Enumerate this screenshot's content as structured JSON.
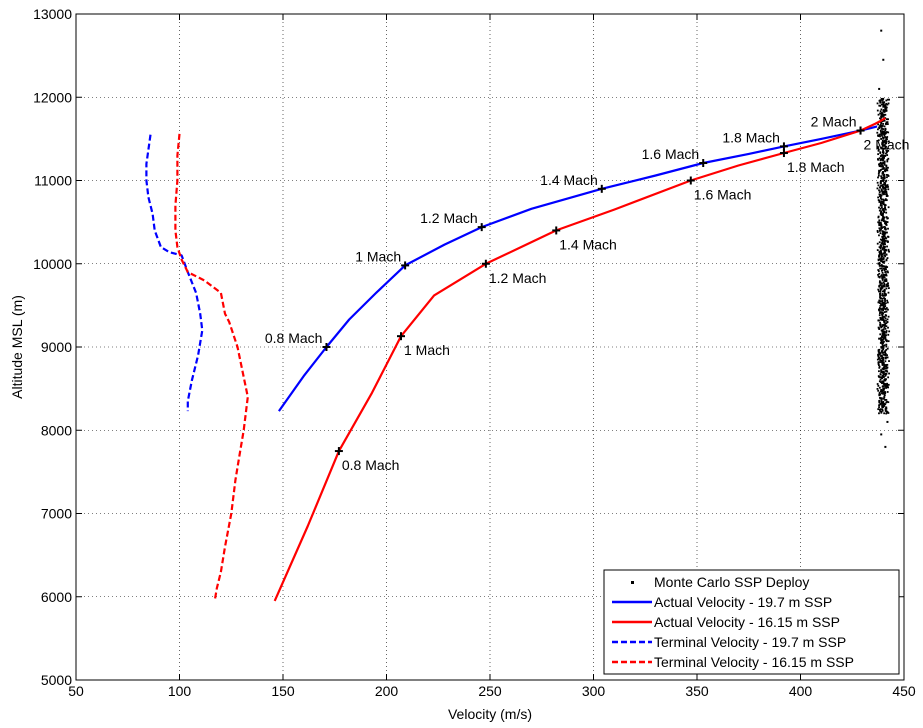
{
  "chart_data": {
    "type": "line",
    "title": "",
    "xlabel": "Velocity (m/s)",
    "ylabel": "Altitude MSL (m)",
    "xlim": [
      50,
      450
    ],
    "ylim": [
      5000,
      13000
    ],
    "xticks": [
      50,
      100,
      150,
      200,
      250,
      300,
      350,
      400,
      450
    ],
    "yticks": [
      5000,
      6000,
      7000,
      8000,
      9000,
      10000,
      11000,
      12000,
      13000
    ],
    "grid": true,
    "legend_position": "bottom-right",
    "series": [
      {
        "name": "Monte Carlo SSP Deploy",
        "style": "scatter",
        "color": "#000000",
        "points": [
          [
            439,
            12800
          ],
          [
            440,
            12450
          ],
          [
            438,
            12100
          ],
          [
            441,
            11900
          ],
          [
            442,
            11700
          ],
          [
            439,
            11500
          ],
          [
            440,
            11300
          ],
          [
            438,
            11100
          ],
          [
            441,
            10900
          ],
          [
            439,
            10700
          ],
          [
            442,
            10500
          ],
          [
            440,
            10300
          ],
          [
            438,
            10100
          ],
          [
            441,
            9900
          ],
          [
            439,
            9700
          ],
          [
            440,
            9500
          ],
          [
            442,
            9300
          ],
          [
            438,
            9100
          ],
          [
            441,
            8900
          ],
          [
            439,
            8700
          ],
          [
            440,
            8500
          ],
          [
            438,
            8300
          ],
          [
            442,
            8100
          ],
          [
            439,
            7950
          ],
          [
            441,
            7800
          ]
        ],
        "density_band": {
          "x_range": [
            437,
            443
          ],
          "y_range": [
            8200,
            12000
          ]
        }
      },
      {
        "name": "Actual Velocity - 19.7 m SSP",
        "style": "solid",
        "color": "#0000ff",
        "x": [
          148,
          160,
          171,
          182,
          195,
          209,
          228,
          246,
          270,
          304,
          330,
          353,
          375,
          392,
          410,
          429,
          434,
          437
        ],
        "y": [
          8230,
          8650,
          9000,
          9330,
          9650,
          9980,
          10230,
          10440,
          10660,
          10900,
          11060,
          11210,
          11320,
          11410,
          11500,
          11600,
          11630,
          11650
        ]
      },
      {
        "name": "Actual Velocity - 16.15 m SSP",
        "style": "solid",
        "color": "#ff0000",
        "x": [
          146,
          162,
          177,
          193,
          207,
          223,
          248,
          265,
          282,
          310,
          347,
          370,
          392,
          410,
          429,
          436,
          439,
          441
        ],
        "y": [
          5950,
          6850,
          7750,
          8450,
          9130,
          9620,
          10000,
          10200,
          10400,
          10650,
          11000,
          11180,
          11330,
          11450,
          11600,
          11680,
          11720,
          11750
        ]
      },
      {
        "name": "Terminal Velocity - 19.7 m SSP",
        "style": "dashed",
        "color": "#0000ff",
        "x": [
          86,
          84,
          84,
          85,
          87,
          88,
          91,
          95,
          101,
          104,
          108,
          110,
          111,
          109,
          106,
          104,
          104
        ],
        "y": [
          11550,
          11200,
          11000,
          10800,
          10600,
          10400,
          10200,
          10140,
          10100,
          9900,
          9650,
          9400,
          9200,
          8900,
          8600,
          8350,
          8230
        ]
      },
      {
        "name": "Terminal Velocity - 16.15 m SSP",
        "style": "dashed",
        "color": "#ff0000",
        "x": [
          100,
          99,
          99,
          98,
          98,
          99,
          101,
          104,
          112,
          120,
          122,
          124,
          128,
          133,
          131,
          129,
          127,
          125,
          122,
          120,
          118,
          117
        ],
        "y": [
          11560,
          11300,
          11000,
          10700,
          10400,
          10200,
          10050,
          9900,
          9800,
          9650,
          9400,
          9300,
          9000,
          8400,
          8000,
          7700,
          7400,
          7000,
          6600,
          6300,
          6100,
          5950
        ]
      }
    ],
    "annotations": [
      {
        "text": "0.8 Mach",
        "x": 171,
        "y": 9000,
        "series": "blue",
        "side": "left"
      },
      {
        "text": "1 Mach",
        "x": 209,
        "y": 9980,
        "series": "blue",
        "side": "left"
      },
      {
        "text": "1.2 Mach",
        "x": 246,
        "y": 10440,
        "series": "blue",
        "side": "left"
      },
      {
        "text": "1.4 Mach",
        "x": 304,
        "y": 10900,
        "series": "blue",
        "side": "left"
      },
      {
        "text": "1.6 Mach",
        "x": 353,
        "y": 11210,
        "series": "blue",
        "side": "left"
      },
      {
        "text": "1.8 Mach",
        "x": 392,
        "y": 11410,
        "series": "blue",
        "side": "left"
      },
      {
        "text": "2 Mach",
        "x": 429,
        "y": 11600,
        "series": "blue",
        "side": "left"
      },
      {
        "text": "0.8 Mach",
        "x": 177,
        "y": 7750,
        "series": "red",
        "side": "right"
      },
      {
        "text": "1 Mach",
        "x": 207,
        "y": 9130,
        "series": "red",
        "side": "right"
      },
      {
        "text": "1.2 Mach",
        "x": 248,
        "y": 10000,
        "series": "red",
        "side": "right"
      },
      {
        "text": "1.4 Mach",
        "x": 282,
        "y": 10400,
        "series": "red",
        "side": "right"
      },
      {
        "text": "1.6 Mach",
        "x": 347,
        "y": 11000,
        "series": "red",
        "side": "right"
      },
      {
        "text": "1.8 Mach",
        "x": 392,
        "y": 11330,
        "series": "red",
        "side": "right"
      },
      {
        "text": "2 Mach",
        "x": 429,
        "y": 11600,
        "series": "red",
        "side": "right"
      }
    ]
  }
}
